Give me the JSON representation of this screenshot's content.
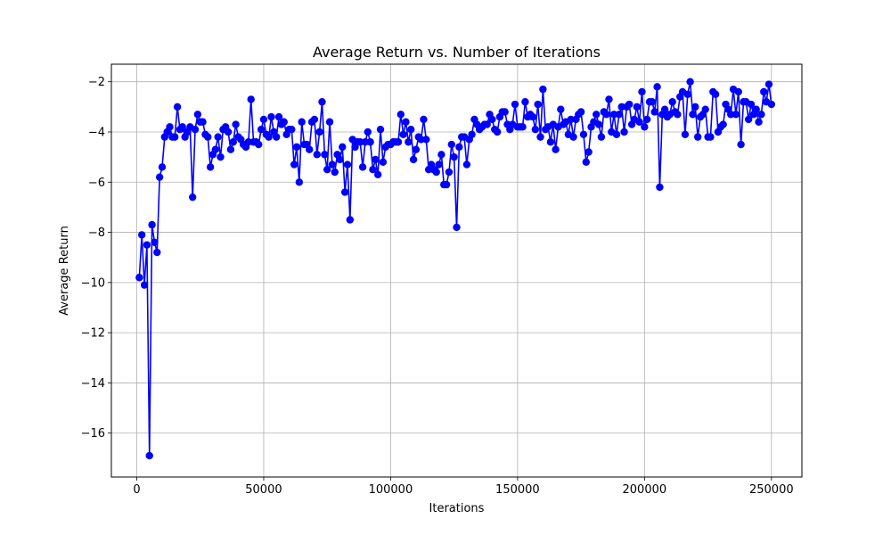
{
  "chart_data": {
    "type": "line",
    "title": "Average Return vs. Number of Iterations",
    "xlabel": "Iterations",
    "ylabel": "Average Return",
    "xlim": [
      -10000,
      262000
    ],
    "ylim": [
      -17.75,
      -1.3
    ],
    "xticks": [
      0,
      50000,
      100000,
      150000,
      200000,
      250000
    ],
    "xtick_labels": [
      "0",
      "50000",
      "100000",
      "150000",
      "200000",
      "250000"
    ],
    "yticks": [
      -16,
      -14,
      -12,
      -10,
      -8,
      -6,
      -4,
      -2
    ],
    "ytick_labels": [
      "−16",
      "−14",
      "−12",
      "−10",
      "−8",
      "−6",
      "−4",
      "−2"
    ],
    "grid": true,
    "color": "#0000ff",
    "marker": "circle",
    "series": [
      {
        "x": [
          1000,
          2000,
          3000,
          4000,
          5000,
          6000,
          7000,
          8000,
          9000,
          10000,
          11000,
          12000,
          13000,
          14000,
          15000,
          16000,
          17000,
          18000,
          19000,
          20000,
          21000,
          22000,
          23000,
          24000,
          25000,
          26000,
          27000,
          28000,
          29000,
          30000,
          31000,
          32000,
          33000,
          34000,
          35000,
          36000,
          37000,
          38000,
          39000,
          40000,
          41000,
          42000,
          43000,
          44000,
          45000,
          46000,
          47000,
          48000,
          49000,
          50000,
          51000,
          52000,
          53000,
          54000,
          55000,
          56000,
          57000,
          58000,
          59000,
          60000,
          61000,
          62000,
          63000,
          64000,
          65000,
          66000,
          67000,
          68000,
          69000,
          70000,
          71000,
          72000,
          73000,
          74000,
          75000,
          76000,
          77000,
          78000,
          79000,
          80000,
          81000,
          82000,
          83000,
          84000,
          85000,
          86000,
          87000,
          88000,
          89000,
          90000,
          91000,
          92000,
          93000,
          94000,
          95000,
          96000,
          97000,
          98000,
          99000,
          100000,
          101000,
          102000,
          103000,
          104000,
          105000,
          106000,
          107000,
          108000,
          109000,
          110000,
          111000,
          112000,
          113000,
          114000,
          115000,
          116000,
          117000,
          118000,
          119000,
          120000,
          121000,
          122000,
          123000,
          124000,
          125000,
          126000,
          127000,
          128000,
          129000,
          130000,
          131000,
          132000,
          133000,
          134000,
          135000,
          136000,
          137000,
          138000,
          139000,
          140000,
          141000,
          142000,
          143000,
          144000,
          145000,
          146000,
          147000,
          148000,
          149000,
          150000,
          151000,
          152000,
          153000,
          154000,
          155000,
          156000,
          157000,
          158000,
          159000,
          160000,
          161000,
          162000,
          163000,
          164000,
          165000,
          166000,
          167000,
          168000,
          169000,
          170000,
          171000,
          172000,
          173000,
          174000,
          175000,
          176000,
          177000,
          178000,
          179000,
          180000,
          181000,
          182000,
          183000,
          184000,
          185000,
          186000,
          187000,
          188000,
          189000,
          190000,
          191000,
          192000,
          193000,
          194000,
          195000,
          196000,
          197000,
          198000,
          199000,
          200000,
          201000,
          202000,
          203000,
          204000,
          205000,
          206000,
          207000,
          208000,
          209000,
          210000,
          211000,
          212000,
          213000,
          214000,
          215000,
          216000,
          217000,
          218000,
          219000,
          220000,
          221000,
          222000,
          223000,
          224000,
          225000,
          226000,
          227000,
          228000,
          229000,
          230000,
          231000,
          232000,
          233000,
          234000,
          235000,
          236000,
          237000,
          238000,
          239000,
          240000,
          241000,
          242000,
          243000,
          244000,
          245000,
          246000,
          247000,
          248000,
          249000,
          250000
        ],
        "y": [
          -9.8,
          -8.1,
          -10.1,
          -8.5,
          -16.9,
          -7.7,
          -8.4,
          -8.8,
          -5.8,
          -5.4,
          -4.2,
          -4.0,
          -3.8,
          -4.2,
          -4.2,
          -3.0,
          -3.9,
          -3.8,
          -4.2,
          -4.0,
          -3.8,
          -6.6,
          -3.9,
          -3.3,
          -3.6,
          -3.6,
          -4.1,
          -4.2,
          -5.4,
          -4.9,
          -4.7,
          -4.2,
          -5.0,
          -3.9,
          -3.8,
          -4.0,
          -4.7,
          -4.4,
          -3.7,
          -4.2,
          -4.3,
          -4.5,
          -4.6,
          -4.4,
          -2.7,
          -4.4,
          -4.4,
          -4.5,
          -3.9,
          -3.5,
          -4.1,
          -4.2,
          -3.4,
          -4.0,
          -4.2,
          -3.4,
          -3.7,
          -3.6,
          -4.1,
          -3.9,
          -3.9,
          -5.3,
          -4.6,
          -6.0,
          -3.6,
          -4.5,
          -4.5,
          -4.7,
          -3.6,
          -3.5,
          -4.9,
          -4.0,
          -2.8,
          -4.9,
          -5.5,
          -3.6,
          -5.3,
          -5.6,
          -4.9,
          -5.1,
          -4.6,
          -6.4,
          -5.3,
          -7.5,
          -4.3,
          -4.6,
          -4.4,
          -4.4,
          -5.4,
          -4.4,
          -4.0,
          -4.4,
          -5.5,
          -5.1,
          -5.7,
          -3.9,
          -5.2,
          -4.6,
          -4.5,
          -4.5,
          -4.4,
          -4.4,
          -4.4,
          -3.3,
          -4.1,
          -3.6,
          -4.4,
          -3.9,
          -5.1,
          -4.7,
          -4.2,
          -4.3,
          -3.5,
          -4.3,
          -5.5,
          -5.3,
          -5.5,
          -5.6,
          -5.3,
          -4.9,
          -6.1,
          -6.1,
          -5.6,
          -4.5,
          -5.0,
          -7.8,
          -4.6,
          -4.2,
          -4.2,
          -5.3,
          -4.3,
          -4.1,
          -3.5,
          -3.7,
          -3.9,
          -3.8,
          -3.7,
          -3.7,
          -3.3,
          -3.5,
          -3.9,
          -4.0,
          -3.4,
          -3.2,
          -3.2,
          -3.7,
          -3.9,
          -3.7,
          -2.9,
          -3.8,
          -3.8,
          -3.8,
          -2.8,
          -3.4,
          -3.3,
          -3.4,
          -3.9,
          -2.9,
          -4.2,
          -2.3,
          -3.9,
          -3.8,
          -4.4,
          -3.7,
          -4.7,
          -3.8,
          -3.1,
          -3.7,
          -3.6,
          -4.1,
          -3.5,
          -4.2,
          -3.5,
          -3.3,
          -3.2,
          -4.1,
          -5.2,
          -4.8,
          -3.8,
          -3.6,
          -3.3,
          -3.7,
          -4.2,
          -3.2,
          -3.3,
          -2.7,
          -4.0,
          -3.3,
          -4.1,
          -3.3,
          -3.0,
          -4.0,
          -3.0,
          -2.9,
          -3.7,
          -3.5,
          -3.0,
          -3.6,
          -2.4,
          -3.8,
          -3.5,
          -2.8,
          -2.8,
          -3.2,
          -2.2,
          -6.2,
          -3.3,
          -3.1,
          -3.4,
          -3.3,
          -2.8,
          -3.2,
          -3.3,
          -2.6,
          -2.4,
          -4.1,
          -2.5,
          -2.0,
          -3.3,
          -3.0,
          -4.2,
          -3.4,
          -3.3,
          -3.1,
          -4.2,
          -4.2,
          -2.4,
          -2.5,
          -4.0,
          -3.8,
          -3.7,
          -2.9,
          -3.1,
          -3.3,
          -2.3,
          -3.3,
          -2.4,
          -4.5,
          -2.8,
          -2.8,
          -3.5,
          -2.9,
          -3.3,
          -3.1,
          -3.6,
          -3.3,
          -2.4,
          -2.8,
          -2.1,
          -2.9
        ]
      }
    ]
  }
}
